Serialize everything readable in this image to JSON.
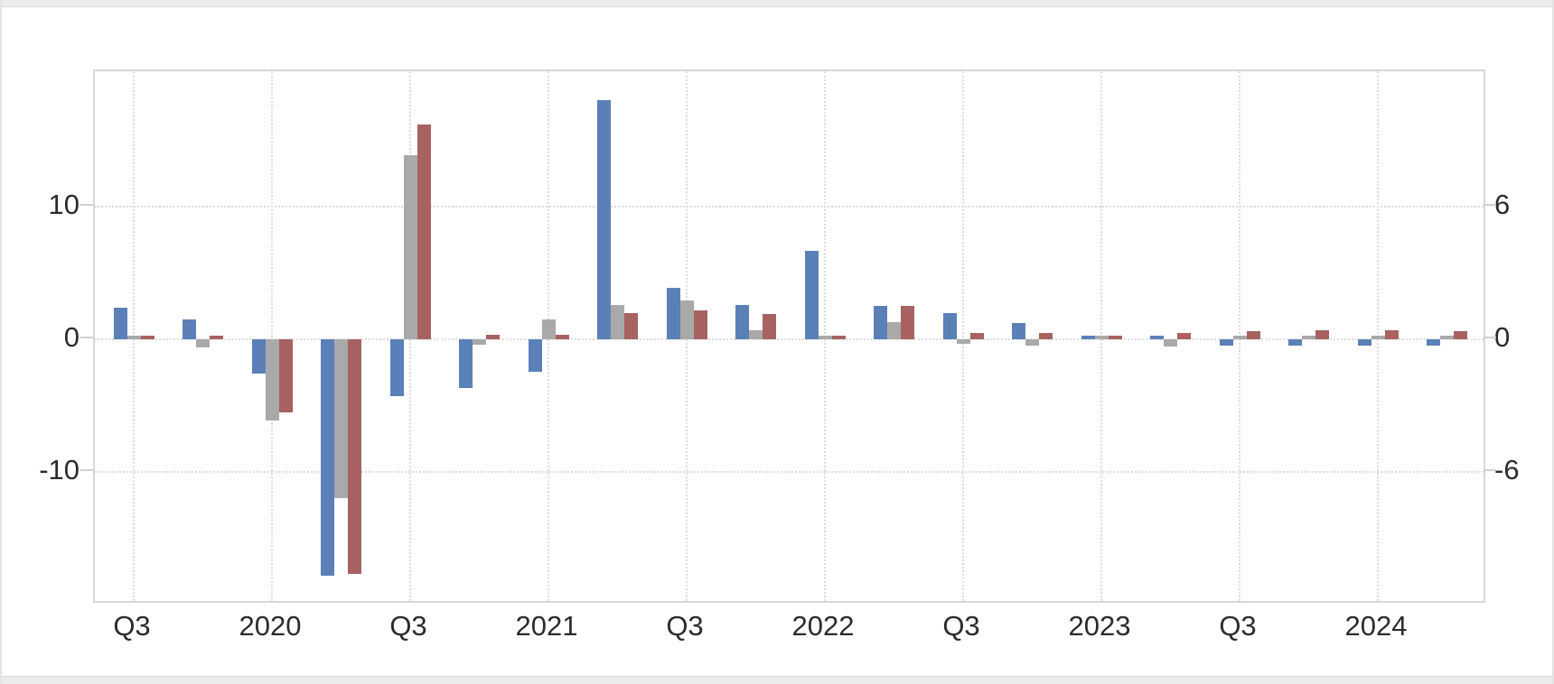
{
  "window": {
    "background": "#ffffff",
    "chrome_color": "#ececec"
  },
  "chart_data": {
    "type": "bar",
    "legend": false,
    "grid": true,
    "categories": [
      "2019 Q3",
      "2019 Q4",
      "2020 Q1",
      "2020 Q2",
      "2020 Q3",
      "2020 Q4",
      "2021 Q1",
      "2021 Q2",
      "2021 Q3",
      "2021 Q4",
      "2022 Q1",
      "2022 Q2",
      "2022 Q3",
      "2022 Q4",
      "2023 Q1",
      "2023 Q2",
      "2023 Q3",
      "2023 Q4",
      "2024 Q1",
      "2024 Q2"
    ],
    "x_tick_labels": [
      "Q3",
      "2020",
      "Q3",
      "2021",
      "Q3",
      "2022",
      "Q3",
      "2023",
      "Q3",
      "2024"
    ],
    "x_ticks_on_category_indexes": [
      0,
      2,
      4,
      6,
      8,
      10,
      12,
      14,
      16,
      18
    ],
    "left_axis": {
      "tick_values": [
        10,
        0,
        -10
      ],
      "tick_labels": [
        "10",
        "0",
        "-10"
      ],
      "range": [
        -20.2,
        20.2
      ]
    },
    "right_axis": {
      "tick_values": [
        6,
        0,
        -6
      ],
      "tick_labels": [
        "6",
        "0",
        "-6"
      ],
      "range": [
        -12.1,
        12.1
      ]
    },
    "series": [
      {
        "name": "blue",
        "color": "#5b80b7",
        "plotted_scale": "left",
        "values": [
          2.4,
          1.5,
          -2.6,
          -17.8,
          -4.3,
          -3.7,
          -2.45,
          18.0,
          3.9,
          2.6,
          6.7,
          2.5,
          2.0,
          1.2,
          0.25,
          0.25,
          -0.5,
          -0.5,
          -0.5,
          -0.5
        ]
      },
      {
        "name": "gray",
        "color": "#a9a9a9",
        "plotted_scale": "left",
        "values": [
          0.3,
          -0.6,
          -6.1,
          -12.0,
          13.9,
          -0.4,
          1.5,
          2.6,
          2.9,
          0.7,
          0.3,
          1.3,
          -0.35,
          -0.5,
          0.25,
          -0.55,
          0.3,
          0.3,
          0.3,
          0.3
        ]
      },
      {
        "name": "red",
        "color": "#a76261",
        "plotted_scale": "left",
        "values": [
          0.3,
          0.3,
          -5.5,
          -17.7,
          16.2,
          0.35,
          0.35,
          2.0,
          2.2,
          1.9,
          0.3,
          2.5,
          0.45,
          0.45,
          0.3,
          0.45,
          0.6,
          0.65,
          0.65,
          0.6
        ]
      }
    ]
  }
}
